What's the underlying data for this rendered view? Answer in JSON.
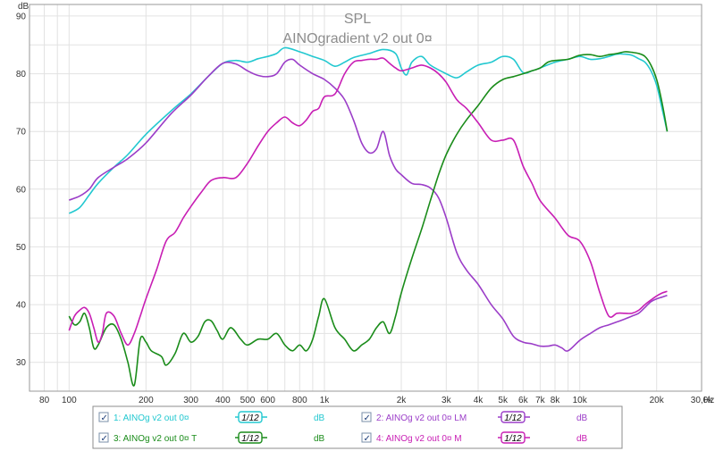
{
  "chart_data": {
    "type": "line",
    "title": "SPL",
    "subtitle": "AINOgradient v2 out 0¤",
    "ylabel": "dB",
    "xlabel": "Hz",
    "xscale": "log",
    "xlim": [
      70,
      30000
    ],
    "ylim": [
      25,
      92
    ],
    "grid": true,
    "legend_position": "bottom",
    "y_ticks": [
      30,
      40,
      50,
      60,
      70,
      80,
      90
    ],
    "x_ticks": [
      {
        "value": 80,
        "label": "80"
      },
      {
        "value": 100,
        "label": "100"
      },
      {
        "value": 200,
        "label": "200"
      },
      {
        "value": 300,
        "label": "300"
      },
      {
        "value": 400,
        "label": "400"
      },
      {
        "value": 500,
        "label": "500"
      },
      {
        "value": 600,
        "label": "600"
      },
      {
        "value": 800,
        "label": "800"
      },
      {
        "value": 1000,
        "label": "1k"
      },
      {
        "value": 2000,
        "label": "2k"
      },
      {
        "value": 3000,
        "label": "3k"
      },
      {
        "value": 4000,
        "label": "4k"
      },
      {
        "value": 5000,
        "label": "5k"
      },
      {
        "value": 6000,
        "label": "6k"
      },
      {
        "value": 7000,
        "label": "7k"
      },
      {
        "value": 8000,
        "label": "8k"
      },
      {
        "value": 10000,
        "label": "10k"
      },
      {
        "value": 20000,
        "label": "20k"
      },
      {
        "value": 30000,
        "label": "30,0k"
      }
    ],
    "series": [
      {
        "name": "1: AINOg v2 out 0¤",
        "color": "#22c8d0",
        "smoothing": "1/12",
        "unit": "dB",
        "points": [
          [
            100,
            55.8
          ],
          [
            110,
            56.8
          ],
          [
            120,
            59
          ],
          [
            130,
            61
          ],
          [
            150,
            63.8
          ],
          [
            170,
            66
          ],
          [
            200,
            69.5
          ],
          [
            250,
            73.5
          ],
          [
            300,
            76.5
          ],
          [
            350,
            79.5
          ],
          [
            400,
            81.8
          ],
          [
            450,
            82.3
          ],
          [
            500,
            82
          ],
          [
            550,
            82.6
          ],
          [
            600,
            83
          ],
          [
            650,
            83.5
          ],
          [
            700,
            84.5
          ],
          [
            800,
            83.8
          ],
          [
            900,
            83
          ],
          [
            1000,
            82.3
          ],
          [
            1100,
            81.3
          ],
          [
            1200,
            82
          ],
          [
            1300,
            82.8
          ],
          [
            1500,
            83.5
          ],
          [
            1700,
            84.2
          ],
          [
            1900,
            83.5
          ],
          [
            2000,
            81
          ],
          [
            2100,
            79.8
          ],
          [
            2200,
            82
          ],
          [
            2400,
            83
          ],
          [
            2600,
            81.5
          ],
          [
            3000,
            80
          ],
          [
            3300,
            79.3
          ],
          [
            3600,
            80.3
          ],
          [
            4000,
            81.5
          ],
          [
            4500,
            82
          ],
          [
            5000,
            83
          ],
          [
            5500,
            82.5
          ],
          [
            6000,
            80.2
          ],
          [
            6500,
            80.5
          ],
          [
            7000,
            81
          ],
          [
            8000,
            82
          ],
          [
            9000,
            82.5
          ],
          [
            10000,
            83
          ],
          [
            11000,
            82.5
          ],
          [
            12000,
            82.6
          ],
          [
            13000,
            83
          ],
          [
            14000,
            83.4
          ],
          [
            15000,
            83.4
          ],
          [
            16000,
            83.2
          ],
          [
            17000,
            82.6
          ],
          [
            18000,
            82
          ],
          [
            19000,
            80.5
          ],
          [
            20000,
            78
          ],
          [
            21000,
            74
          ],
          [
            22000,
            70
          ]
        ]
      },
      {
        "name": "2: AINOg v2 out 0¤ LM",
        "color": "#9b3dc8",
        "smoothing": "1/12",
        "unit": "dB",
        "points": [
          [
            100,
            58.1
          ],
          [
            110,
            58.8
          ],
          [
            120,
            60
          ],
          [
            130,
            62
          ],
          [
            150,
            63.8
          ],
          [
            170,
            65.3
          ],
          [
            200,
            68
          ],
          [
            250,
            73
          ],
          [
            300,
            76.3
          ],
          [
            350,
            79.5
          ],
          [
            400,
            81.8
          ],
          [
            450,
            81.7
          ],
          [
            500,
            80.5
          ],
          [
            550,
            79.7
          ],
          [
            600,
            79.5
          ],
          [
            650,
            80
          ],
          [
            700,
            82
          ],
          [
            750,
            82.5
          ],
          [
            800,
            81.5
          ],
          [
            900,
            80
          ],
          [
            1000,
            79
          ],
          [
            1100,
            77.5
          ],
          [
            1200,
            75.5
          ],
          [
            1300,
            72
          ],
          [
            1400,
            68
          ],
          [
            1500,
            66.3
          ],
          [
            1600,
            67
          ],
          [
            1700,
            70
          ],
          [
            1800,
            65.8
          ],
          [
            1900,
            63.5
          ],
          [
            2000,
            62.5
          ],
          [
            2200,
            61
          ],
          [
            2400,
            60.8
          ],
          [
            2600,
            60.2
          ],
          [
            2800,
            58.5
          ],
          [
            3000,
            55
          ],
          [
            3300,
            49
          ],
          [
            3600,
            46
          ],
          [
            4000,
            43.5
          ],
          [
            4500,
            40
          ],
          [
            5000,
            37.5
          ],
          [
            5500,
            34.5
          ],
          [
            6000,
            33.5
          ],
          [
            6500,
            33.2
          ],
          [
            7000,
            32.8
          ],
          [
            7500,
            32.8
          ],
          [
            8000,
            33
          ],
          [
            8500,
            32.5
          ],
          [
            9000,
            32
          ],
          [
            10000,
            33.8
          ],
          [
            11000,
            35
          ],
          [
            12000,
            36
          ],
          [
            13000,
            36.5
          ],
          [
            14000,
            37
          ],
          [
            15000,
            37.5
          ],
          [
            16000,
            38
          ],
          [
            17000,
            38.5
          ],
          [
            18000,
            39.5
          ],
          [
            19000,
            40.5
          ],
          [
            20000,
            41
          ],
          [
            21000,
            41.3
          ],
          [
            22000,
            41.6
          ]
        ]
      },
      {
        "name": "3: AINOg v2 out 0¤ T",
        "color": "#1a8c1a",
        "smoothing": "1/12",
        "unit": "dB",
        "points": [
          [
            100,
            38
          ],
          [
            105,
            36.5
          ],
          [
            110,
            37
          ],
          [
            115,
            38.5
          ],
          [
            120,
            36
          ],
          [
            125,
            32.5
          ],
          [
            130,
            33
          ],
          [
            140,
            36
          ],
          [
            150,
            36.5
          ],
          [
            160,
            34
          ],
          [
            170,
            30
          ],
          [
            180,
            26
          ],
          [
            190,
            34
          ],
          [
            200,
            33.5
          ],
          [
            210,
            32
          ],
          [
            230,
            31
          ],
          [
            240,
            29.5
          ],
          [
            260,
            31.5
          ],
          [
            280,
            35
          ],
          [
            300,
            33.5
          ],
          [
            320,
            34.5
          ],
          [
            340,
            37
          ],
          [
            360,
            37.2
          ],
          [
            380,
            35.5
          ],
          [
            400,
            34
          ],
          [
            430,
            36
          ],
          [
            470,
            34
          ],
          [
            500,
            33
          ],
          [
            550,
            34
          ],
          [
            600,
            34
          ],
          [
            650,
            35
          ],
          [
            700,
            33
          ],
          [
            750,
            32
          ],
          [
            800,
            33
          ],
          [
            850,
            32
          ],
          [
            900,
            34
          ],
          [
            950,
            38
          ],
          [
            1000,
            41
          ],
          [
            1100,
            36
          ],
          [
            1200,
            34
          ],
          [
            1300,
            32
          ],
          [
            1400,
            33
          ],
          [
            1500,
            34
          ],
          [
            1600,
            36
          ],
          [
            1700,
            37
          ],
          [
            1800,
            35
          ],
          [
            1900,
            38
          ],
          [
            2000,
            42
          ],
          [
            2200,
            48
          ],
          [
            2400,
            53
          ],
          [
            2600,
            58
          ],
          [
            2800,
            62.5
          ],
          [
            3000,
            66
          ],
          [
            3300,
            69.5
          ],
          [
            3600,
            72
          ],
          [
            4000,
            74.5
          ],
          [
            4500,
            77.5
          ],
          [
            5000,
            79
          ],
          [
            5500,
            79.5
          ],
          [
            6000,
            80
          ],
          [
            6500,
            80.5
          ],
          [
            7000,
            81
          ],
          [
            7500,
            82
          ],
          [
            8000,
            82.3
          ],
          [
            9000,
            82.5
          ],
          [
            10000,
            83.2
          ],
          [
            11000,
            83.3
          ],
          [
            12000,
            83
          ],
          [
            13000,
            83.3
          ],
          [
            14000,
            83.5
          ],
          [
            15000,
            83.8
          ],
          [
            16000,
            83.7
          ],
          [
            17000,
            83.5
          ],
          [
            18000,
            83
          ],
          [
            19000,
            81.5
          ],
          [
            20000,
            79
          ],
          [
            21000,
            75
          ],
          [
            22000,
            70
          ]
        ]
      },
      {
        "name": "4: AINOg v2 out 0¤ M",
        "color": "#c81eb4",
        "smoothing": "1/12",
        "unit": "dB",
        "points": [
          [
            100,
            35.5
          ],
          [
            105,
            38
          ],
          [
            110,
            39
          ],
          [
            115,
            39.5
          ],
          [
            120,
            38.5
          ],
          [
            125,
            36
          ],
          [
            130,
            33.5
          ],
          [
            135,
            35
          ],
          [
            140,
            38.5
          ],
          [
            150,
            38
          ],
          [
            160,
            35
          ],
          [
            170,
            33
          ],
          [
            180,
            35
          ],
          [
            190,
            38
          ],
          [
            200,
            41
          ],
          [
            220,
            46
          ],
          [
            240,
            51
          ],
          [
            260,
            52.5
          ],
          [
            280,
            55
          ],
          [
            300,
            57
          ],
          [
            330,
            59.5
          ],
          [
            360,
            61.5
          ],
          [
            400,
            62
          ],
          [
            450,
            62
          ],
          [
            500,
            64.5
          ],
          [
            550,
            67.5
          ],
          [
            600,
            70
          ],
          [
            650,
            71.5
          ],
          [
            700,
            72.5
          ],
          [
            750,
            71.5
          ],
          [
            800,
            71
          ],
          [
            850,
            72
          ],
          [
            900,
            73.5
          ],
          [
            950,
            74
          ],
          [
            1000,
            76
          ],
          [
            1100,
            76.5
          ],
          [
            1200,
            80
          ],
          [
            1300,
            82
          ],
          [
            1400,
            82.3
          ],
          [
            1500,
            82.5
          ],
          [
            1600,
            82.5
          ],
          [
            1700,
            82.7
          ],
          [
            1800,
            81.8
          ],
          [
            1900,
            81
          ],
          [
            2000,
            80.5
          ],
          [
            2200,
            81
          ],
          [
            2400,
            81.5
          ],
          [
            2600,
            81
          ],
          [
            2800,
            80
          ],
          [
            3000,
            78.5
          ],
          [
            3300,
            75.5
          ],
          [
            3600,
            74
          ],
          [
            4000,
            71.5
          ],
          [
            4500,
            68.5
          ],
          [
            5000,
            68.5
          ],
          [
            5500,
            68.5
          ],
          [
            6000,
            64
          ],
          [
            6500,
            61
          ],
          [
            7000,
            58
          ],
          [
            8000,
            55
          ],
          [
            9000,
            52
          ],
          [
            10000,
            51
          ],
          [
            11000,
            47.5
          ],
          [
            12000,
            42
          ],
          [
            13000,
            38
          ],
          [
            14000,
            38.5
          ],
          [
            15000,
            38.5
          ],
          [
            16000,
            38.5
          ],
          [
            17000,
            39
          ],
          [
            18000,
            40
          ],
          [
            19000,
            40.8
          ],
          [
            20000,
            41.5
          ],
          [
            21000,
            42
          ],
          [
            22000,
            42.3
          ]
        ]
      }
    ]
  },
  "legend": {
    "dB_label": "dB",
    "smoothing_label": "1/12",
    "check_mark": "✓"
  }
}
